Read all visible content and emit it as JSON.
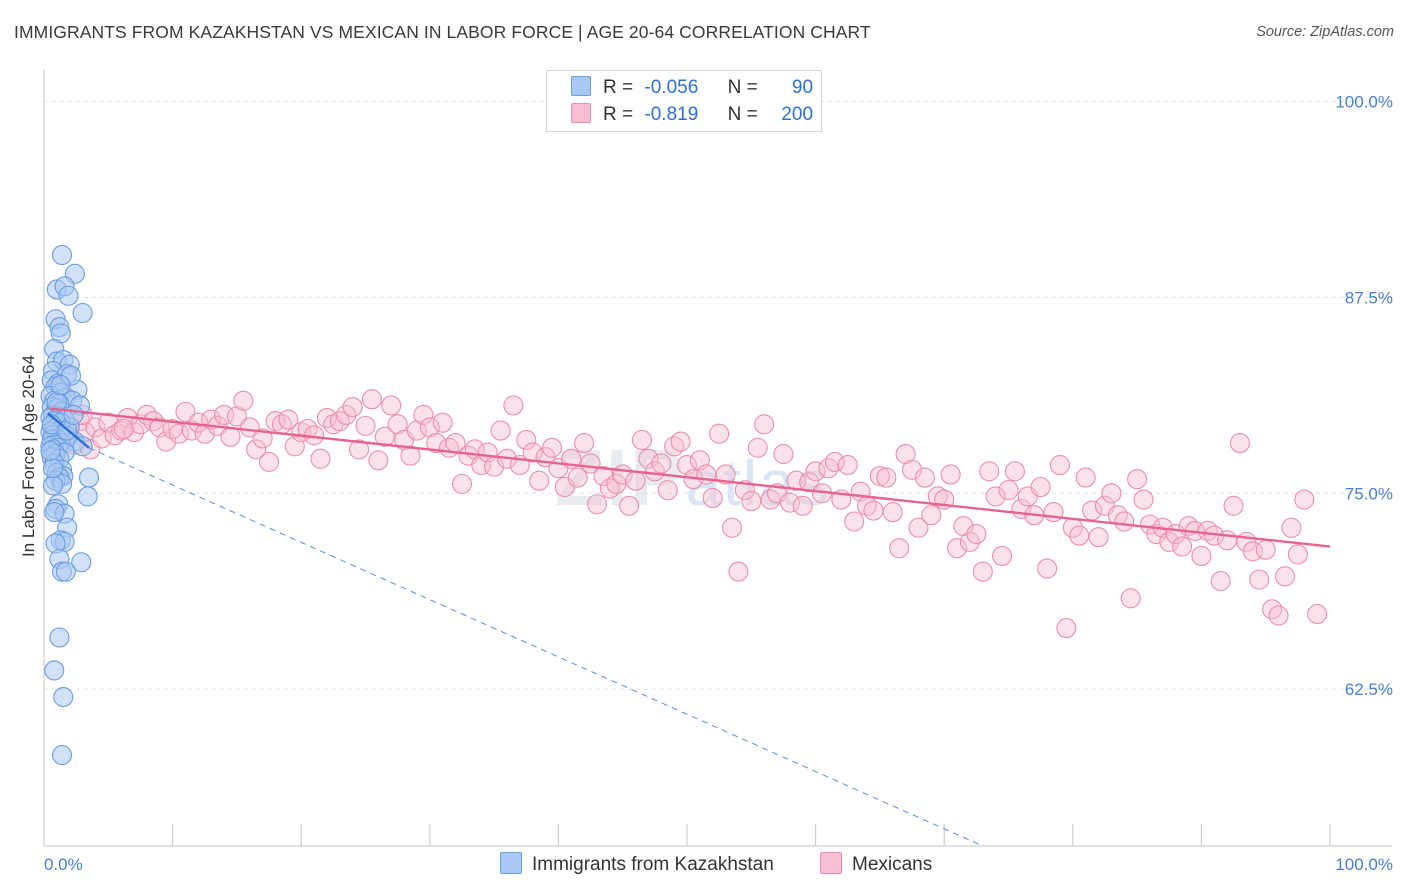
{
  "title": "IMMIGRANTS FROM KAZAKHSTAN VS MEXICAN IN LABOR FORCE | AGE 20-64 CORRELATION CHART",
  "source": "Source: ZipAtlas.com",
  "watermark": {
    "zip": "ZIP",
    "atlas": "atlas"
  },
  "legend": {
    "rows": [
      {
        "r_label": "R =",
        "r_value": "-0.056",
        "n_label": "N =",
        "n_value": "90",
        "color": "#a9c8f2",
        "border": "#6b9de0"
      },
      {
        "r_label": "R =",
        "r_value": "-0.819",
        "n_label": "N =",
        "n_value": "200",
        "color": "#f7bfd0",
        "border": "#eb8fae"
      }
    ]
  },
  "bottom_legend": [
    {
      "label": "Immigrants from Kazakhstan",
      "color": "#a9c8f2",
      "border": "#6b9de0"
    },
    {
      "label": "Mexicans",
      "color": "#f7bfd0",
      "border": "#eb8fae"
    }
  ],
  "chart_data": {
    "type": "scatter",
    "ylabel": "In Labor Force | Age 20-64",
    "xlim": [
      0,
      100
    ],
    "ylim": [
      52.5,
      102
    ],
    "x_tick_labels": [
      {
        "x": 0,
        "label": "0.0%"
      },
      {
        "x": 100,
        "label": "100.0%"
      }
    ],
    "y_tick_labels": [
      {
        "y": 100,
        "label": "100.0%"
      },
      {
        "y": 87.5,
        "label": "87.5%"
      },
      {
        "y": 75,
        "label": "75.0%"
      },
      {
        "y": 62.5,
        "label": "62.5%"
      }
    ],
    "series": [
      {
        "name": "Immigrants from Kazakhstan",
        "color": "#6b9de0",
        "fill": "rgba(169,200,242,0.55)",
        "points": [
          [
            1.4,
            90.2
          ],
          [
            2.4,
            89.0
          ],
          [
            1.0,
            88.0
          ],
          [
            1.6,
            88.2
          ],
          [
            1.9,
            87.6
          ],
          [
            3.0,
            86.5
          ],
          [
            0.9,
            86.1
          ],
          [
            1.2,
            85.6
          ],
          [
            1.3,
            85.2
          ],
          [
            0.8,
            84.2
          ],
          [
            1.0,
            83.4
          ],
          [
            1.5,
            83.5
          ],
          [
            2.0,
            83.2
          ],
          [
            0.7,
            82.8
          ],
          [
            1.8,
            82.6
          ],
          [
            0.6,
            82.2
          ],
          [
            1.1,
            82.0
          ],
          [
            2.6,
            81.6
          ],
          [
            0.9,
            81.8
          ],
          [
            1.3,
            81.4
          ],
          [
            0.5,
            81.2
          ],
          [
            1.7,
            81.1
          ],
          [
            2.2,
            80.9
          ],
          [
            0.8,
            80.9
          ],
          [
            1.2,
            80.7
          ],
          [
            2.8,
            80.6
          ],
          [
            0.6,
            80.5
          ],
          [
            1.0,
            80.4
          ],
          [
            1.4,
            80.2
          ],
          [
            0.7,
            80.0
          ],
          [
            1.1,
            79.9
          ],
          [
            0.5,
            79.8
          ],
          [
            1.6,
            79.7
          ],
          [
            0.9,
            79.6
          ],
          [
            1.3,
            79.5
          ],
          [
            0.6,
            79.3
          ],
          [
            2.0,
            79.2
          ],
          [
            0.8,
            79.1
          ],
          [
            1.2,
            79.0
          ],
          [
            0.5,
            78.9
          ],
          [
            1.5,
            78.8
          ],
          [
            0.7,
            78.7
          ],
          [
            1.9,
            78.6
          ],
          [
            1.0,
            78.5
          ],
          [
            0.6,
            78.4
          ],
          [
            2.4,
            78.3
          ],
          [
            1.3,
            78.2
          ],
          [
            0.8,
            78.1
          ],
          [
            0.5,
            78.0
          ],
          [
            3.0,
            78.0
          ],
          [
            1.1,
            77.9
          ],
          [
            0.7,
            77.8
          ],
          [
            1.6,
            77.6
          ],
          [
            0.9,
            77.5
          ],
          [
            0.6,
            77.3
          ],
          [
            1.2,
            77.2
          ],
          [
            0.8,
            76.9
          ],
          [
            1.4,
            76.5
          ],
          [
            1.0,
            76.3
          ],
          [
            1.5,
            76.1
          ],
          [
            1.2,
            76.0
          ],
          [
            3.5,
            76.0
          ],
          [
            0.9,
            75.8
          ],
          [
            1.4,
            75.6
          ],
          [
            0.7,
            75.5
          ],
          [
            3.4,
            74.8
          ],
          [
            1.1,
            74.3
          ],
          [
            0.9,
            74.0
          ],
          [
            1.6,
            73.7
          ],
          [
            0.8,
            73.8
          ],
          [
            1.8,
            72.8
          ],
          [
            1.3,
            72.0
          ],
          [
            1.6,
            71.9
          ],
          [
            0.9,
            71.8
          ],
          [
            1.2,
            70.8
          ],
          [
            2.9,
            70.6
          ],
          [
            1.4,
            70.0
          ],
          [
            1.7,
            70.0
          ],
          [
            1.2,
            65.8
          ],
          [
            0.8,
            63.7
          ],
          [
            1.5,
            62.0
          ],
          [
            1.4,
            58.3
          ],
          [
            0.6,
            79.4
          ],
          [
            1.0,
            80.8
          ],
          [
            2.1,
            82.5
          ],
          [
            0.7,
            76.6
          ],
          [
            1.8,
            79.0
          ],
          [
            1.3,
            81.9
          ],
          [
            0.5,
            77.7
          ],
          [
            2.3,
            80.0
          ]
        ],
        "trend_solid": [
          [
            0.3,
            80.1
          ],
          [
            3.5,
            77.9
          ]
        ],
        "trend_dashed": [
          [
            3.5,
            77.9
          ],
          [
            73.0,
            52.5
          ]
        ]
      },
      {
        "name": "Mexicans",
        "color": "#eb8fae",
        "fill": "rgba(247,191,208,0.45)",
        "points": [
          [
            0.8,
            78.6
          ],
          [
            1.2,
            79.0
          ],
          [
            1.6,
            78.4
          ],
          [
            2.0,
            79.3
          ],
          [
            2.4,
            78.1
          ],
          [
            2.8,
            79.6
          ],
          [
            3.2,
            78.9
          ],
          [
            3.6,
            77.8
          ],
          [
            4.0,
            79.2
          ],
          [
            4.5,
            78.5
          ],
          [
            5.0,
            79.5
          ],
          [
            5.5,
            78.7
          ],
          [
            6.0,
            79.0
          ],
          [
            6.5,
            79.8
          ],
          [
            7.0,
            78.9
          ],
          [
            7.5,
            79.4
          ],
          [
            8.0,
            80.0
          ],
          [
            8.5,
            79.6
          ],
          [
            9.0,
            79.2
          ],
          [
            9.5,
            78.3
          ],
          [
            10.0,
            79.1
          ],
          [
            10.5,
            78.8
          ],
          [
            11.0,
            80.2
          ],
          [
            11.5,
            79.0
          ],
          [
            12.0,
            79.5
          ],
          [
            12.5,
            78.8
          ],
          [
            13.0,
            79.7
          ],
          [
            13.5,
            79.3
          ],
          [
            14.0,
            80.0
          ],
          [
            14.5,
            78.6
          ],
          [
            15.0,
            79.9
          ],
          [
            15.5,
            80.9
          ],
          [
            16.0,
            79.2
          ],
          [
            16.5,
            77.8
          ],
          [
            17.0,
            78.5
          ],
          [
            17.5,
            77.0
          ],
          [
            18.0,
            79.6
          ],
          [
            18.5,
            79.4
          ],
          [
            19.0,
            79.7
          ],
          [
            19.5,
            78.0
          ],
          [
            20.0,
            78.9
          ],
          [
            20.5,
            79.1
          ],
          [
            21.0,
            78.7
          ],
          [
            21.5,
            77.2
          ],
          [
            22.0,
            79.8
          ],
          [
            22.5,
            79.4
          ],
          [
            23.0,
            79.6
          ],
          [
            23.5,
            80.0
          ],
          [
            24.0,
            80.5
          ],
          [
            24.5,
            77.8
          ],
          [
            25.0,
            79.3
          ],
          [
            25.5,
            81.0
          ],
          [
            26.0,
            77.1
          ],
          [
            26.5,
            78.6
          ],
          [
            27.0,
            80.6
          ],
          [
            27.5,
            79.4
          ],
          [
            28.0,
            78.4
          ],
          [
            28.5,
            77.4
          ],
          [
            29.0,
            79.0
          ],
          [
            29.5,
            80.0
          ],
          [
            30.0,
            79.2
          ],
          [
            30.5,
            78.2
          ],
          [
            31.0,
            79.5
          ],
          [
            31.5,
            77.9
          ],
          [
            32.0,
            78.2
          ],
          [
            32.5,
            75.6
          ],
          [
            33.0,
            77.4
          ],
          [
            33.5,
            77.8
          ],
          [
            34.0,
            76.8
          ],
          [
            34.5,
            77.6
          ],
          [
            35.0,
            76.7
          ],
          [
            35.5,
            79.0
          ],
          [
            36.0,
            77.2
          ],
          [
            36.5,
            80.6
          ],
          [
            37.0,
            76.8
          ],
          [
            37.5,
            78.4
          ],
          [
            38.0,
            77.6
          ],
          [
            38.5,
            75.8
          ],
          [
            39.0,
            77.3
          ],
          [
            39.5,
            77.9
          ],
          [
            40.0,
            76.6
          ],
          [
            40.5,
            75.4
          ],
          [
            41.0,
            77.2
          ],
          [
            41.5,
            76.0
          ],
          [
            42.0,
            78.2
          ],
          [
            42.5,
            76.9
          ],
          [
            43.0,
            74.3
          ],
          [
            43.5,
            76.1
          ],
          [
            44.0,
            75.3
          ],
          [
            44.5,
            75.6
          ],
          [
            45.0,
            76.2
          ],
          [
            45.5,
            74.2
          ],
          [
            46.0,
            75.8
          ],
          [
            46.5,
            78.4
          ],
          [
            47.0,
            77.2
          ],
          [
            47.5,
            76.4
          ],
          [
            48.0,
            76.9
          ],
          [
            48.5,
            75.2
          ],
          [
            49.0,
            78.0
          ],
          [
            49.5,
            78.3
          ],
          [
            50.0,
            76.8
          ],
          [
            50.5,
            75.9
          ],
          [
            51.0,
            77.1
          ],
          [
            51.5,
            76.2
          ],
          [
            52.0,
            74.7
          ],
          [
            52.5,
            78.8
          ],
          [
            53.0,
            76.2
          ],
          [
            53.5,
            72.8
          ],
          [
            54.0,
            70.0
          ],
          [
            54.5,
            75.2
          ],
          [
            55.0,
            74.5
          ],
          [
            55.5,
            77.9
          ],
          [
            56.0,
            79.4
          ],
          [
            56.5,
            74.6
          ],
          [
            57.0,
            75.0
          ],
          [
            57.5,
            77.5
          ],
          [
            58.0,
            74.4
          ],
          [
            58.5,
            75.8
          ],
          [
            59.0,
            74.2
          ],
          [
            59.5,
            75.7
          ],
          [
            60.0,
            76.4
          ],
          [
            60.5,
            75.0
          ],
          [
            61.0,
            76.6
          ],
          [
            61.5,
            77.0
          ],
          [
            62.0,
            74.6
          ],
          [
            62.5,
            76.8
          ],
          [
            63.0,
            73.2
          ],
          [
            63.5,
            75.1
          ],
          [
            64.0,
            74.2
          ],
          [
            64.5,
            73.9
          ],
          [
            65.0,
            76.1
          ],
          [
            65.5,
            76.0
          ],
          [
            66.0,
            73.8
          ],
          [
            66.5,
            71.5
          ],
          [
            67.0,
            77.5
          ],
          [
            67.5,
            76.5
          ],
          [
            68.0,
            72.8
          ],
          [
            68.5,
            76.0
          ],
          [
            69.0,
            73.6
          ],
          [
            69.5,
            74.8
          ],
          [
            70.0,
            74.6
          ],
          [
            70.5,
            76.2
          ],
          [
            71.0,
            71.5
          ],
          [
            71.5,
            72.9
          ],
          [
            72.0,
            71.9
          ],
          [
            72.5,
            72.4
          ],
          [
            73.0,
            70.0
          ],
          [
            73.5,
            76.4
          ],
          [
            74.0,
            74.8
          ],
          [
            74.5,
            71.0
          ],
          [
            75.0,
            75.2
          ],
          [
            75.5,
            76.4
          ],
          [
            76.0,
            74.0
          ],
          [
            76.5,
            74.8
          ],
          [
            77.0,
            73.6
          ],
          [
            77.5,
            75.4
          ],
          [
            78.0,
            70.2
          ],
          [
            78.5,
            73.8
          ],
          [
            79.0,
            76.8
          ],
          [
            79.5,
            66.4
          ],
          [
            80.0,
            72.8
          ],
          [
            80.5,
            72.3
          ],
          [
            81.0,
            76.0
          ],
          [
            81.5,
            73.9
          ],
          [
            82.0,
            72.2
          ],
          [
            82.5,
            74.2
          ],
          [
            83.0,
            75.0
          ],
          [
            83.5,
            73.6
          ],
          [
            84.0,
            73.2
          ],
          [
            84.5,
            68.3
          ],
          [
            85.0,
            75.9
          ],
          [
            85.5,
            74.6
          ],
          [
            86.0,
            73.0
          ],
          [
            86.5,
            72.4
          ],
          [
            87.0,
            72.8
          ],
          [
            87.5,
            71.9
          ],
          [
            88.0,
            72.4
          ],
          [
            88.5,
            71.6
          ],
          [
            89.0,
            72.9
          ],
          [
            89.5,
            72.6
          ],
          [
            90.0,
            71.0
          ],
          [
            90.5,
            72.6
          ],
          [
            91.0,
            72.3
          ],
          [
            91.5,
            69.4
          ],
          [
            92.0,
            72.0
          ],
          [
            92.5,
            74.2
          ],
          [
            93.0,
            78.2
          ],
          [
            93.5,
            71.9
          ],
          [
            94.0,
            71.3
          ],
          [
            94.5,
            69.5
          ],
          [
            95.0,
            71.4
          ],
          [
            95.5,
            67.6
          ],
          [
            96.0,
            67.2
          ],
          [
            96.5,
            69.7
          ],
          [
            97.0,
            72.8
          ],
          [
            97.5,
            71.1
          ],
          [
            98.0,
            74.6
          ],
          [
            99.0,
            67.3
          ],
          [
            6.2,
            79.1
          ],
          [
            3.0,
            80.0
          ]
        ],
        "trend_solid": [
          [
            0.5,
            80.4
          ],
          [
            100,
            71.6
          ]
        ]
      }
    ],
    "grid": true,
    "legend_position": "top-center"
  }
}
